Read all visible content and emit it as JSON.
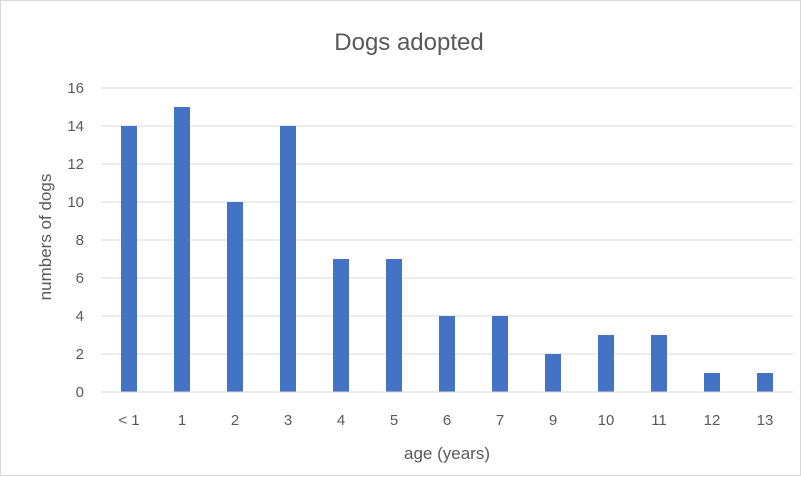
{
  "chart_data": {
    "type": "bar",
    "title": "Dogs adopted",
    "xlabel": "age (years)",
    "ylabel": "numbers of dogs",
    "categories": [
      "< 1",
      "1",
      "2",
      "3",
      "4",
      "5",
      "6",
      "7",
      "9",
      "10",
      "11",
      "12",
      "13"
    ],
    "values": [
      14,
      15,
      10,
      14,
      7,
      7,
      4,
      4,
      2,
      3,
      3,
      1,
      1
    ],
    "ylim": [
      0,
      16
    ],
    "yticks": [
      0,
      2,
      4,
      6,
      8,
      10,
      12,
      14,
      16
    ],
    "grid": true,
    "legend": "none",
    "bar_color": "#4472c4",
    "grid_color": "#d9d9d9"
  }
}
